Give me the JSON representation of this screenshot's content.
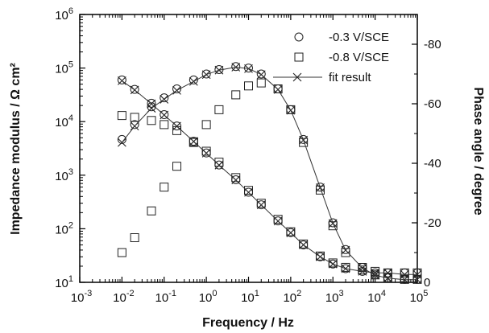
{
  "chart_data": {
    "type": "scatter",
    "x_scale": "log",
    "xlim": [
      0.001,
      100000
    ],
    "y_left_scale": "log",
    "y_left_lim": [
      10,
      1000000
    ],
    "y_right_lim": [
      0,
      -90
    ],
    "grid": false,
    "legend_position": "top-right",
    "xlabel": "Frequency / Hz",
    "ylabel": "Impedance modulus / Ω cm²",
    "ylabel_right": "Phase angle / degree",
    "x_ticks": [
      {
        "base": "10",
        "exp": "-3",
        "value": 0.001
      },
      {
        "base": "10",
        "exp": "-2",
        "value": 0.01
      },
      {
        "base": "10",
        "exp": "-1",
        "value": 0.1
      },
      {
        "base": "10",
        "exp": "0",
        "value": 1
      },
      {
        "base": "10",
        "exp": "1",
        "value": 10
      },
      {
        "base": "10",
        "exp": "2",
        "value": 100
      },
      {
        "base": "10",
        "exp": "3",
        "value": 1000
      },
      {
        "base": "10",
        "exp": "4",
        "value": 10000
      },
      {
        "base": "10",
        "exp": "5",
        "value": 100000
      }
    ],
    "y_left_ticks": [
      {
        "base": "10",
        "exp": "1",
        "value": 10
      },
      {
        "base": "10",
        "exp": "2",
        "value": 100
      },
      {
        "base": "10",
        "exp": "3",
        "value": 1000
      },
      {
        "base": "10",
        "exp": "4",
        "value": 10000
      },
      {
        "base": "10",
        "exp": "5",
        "value": 100000
      },
      {
        "base": "10",
        "exp": "6",
        "value": 1000000
      }
    ],
    "y_right_ticks": [
      {
        "label": "0",
        "value": 0
      },
      {
        "label": "-20",
        "value": -20
      },
      {
        "label": "-40",
        "value": -40
      },
      {
        "label": "-60",
        "value": -60
      },
      {
        "label": "-80",
        "value": -80
      }
    ],
    "legend": [
      {
        "label": "-0.3 V/SCE",
        "marker": "circle"
      },
      {
        "label": "-0.8 V/SCE",
        "marker": "square"
      },
      {
        "label": "fit result",
        "marker": "cross"
      }
    ],
    "series": [
      {
        "name": "-0.3 V/SCE",
        "marker": "circle",
        "freq": [
          0.01,
          0.02,
          0.05,
          0.1,
          0.2,
          0.5,
          1,
          2,
          5,
          10,
          20,
          50,
          100,
          200,
          500,
          1000,
          2000,
          5000,
          10000,
          20000,
          50000,
          100000
        ],
        "modulus": [
          60000,
          40000,
          22000,
          13500,
          8300,
          4300,
          2600,
          1550,
          820,
          480,
          280,
          140,
          85,
          50,
          30,
          22,
          18,
          16,
          15,
          15,
          15,
          15
        ],
        "phase": [
          -48,
          -53,
          -59,
          -62,
          -65,
          -68,
          -70,
          -71.5,
          -72.5,
          -72,
          -70,
          -65,
          -58,
          -48,
          -32,
          -20,
          -11,
          -5,
          -2.5,
          -1.5,
          -1,
          -1
        ]
      },
      {
        "name": "-0.8 V/SCE",
        "marker": "square",
        "freq": [
          0.01,
          0.02,
          0.05,
          0.1,
          0.2,
          0.5,
          1,
          2,
          5,
          10,
          20,
          50,
          100,
          200,
          500,
          1000,
          2000,
          5000,
          10000,
          20000,
          50000,
          100000
        ],
        "modulus": [
          13000,
          12000,
          10500,
          8800,
          6800,
          4200,
          2800,
          1750,
          900,
          520,
          300,
          150,
          88,
          52,
          31,
          23,
          19,
          17,
          16,
          15,
          15,
          15
        ],
        "phase": [
          -10,
          -15,
          -24,
          -32,
          -39,
          -47,
          -53,
          -58,
          -63,
          -66,
          -67,
          -65,
          -58,
          -47,
          -31,
          -19,
          -10,
          -5,
          -2.5,
          -1.5,
          -1,
          -1
        ]
      },
      {
        "name": "fit result",
        "marker": "cross",
        "freq": [
          0.01,
          0.02,
          0.05,
          0.1,
          0.2,
          0.5,
          1,
          2,
          5,
          10,
          20,
          50,
          100,
          200,
          500,
          1000,
          2000,
          5000,
          10000,
          20000,
          50000,
          100000
        ],
        "modulus": [
          58000,
          39000,
          21500,
          13300,
          8200,
          4250,
          2580,
          1540,
          815,
          478,
          279,
          139,
          84,
          50,
          30,
          22,
          18,
          16,
          15,
          15,
          14,
          14
        ],
        "phase": [
          -47,
          -52.5,
          -58.5,
          -61.5,
          -64.5,
          -67.5,
          -69.8,
          -71.3,
          -72.3,
          -71.8,
          -69.8,
          -64.8,
          -57.8,
          -47.8,
          -31.8,
          -19.8,
          -10.8,
          -4.8,
          -2.4,
          -1.4,
          -0.9,
          -0.9
        ]
      }
    ]
  }
}
